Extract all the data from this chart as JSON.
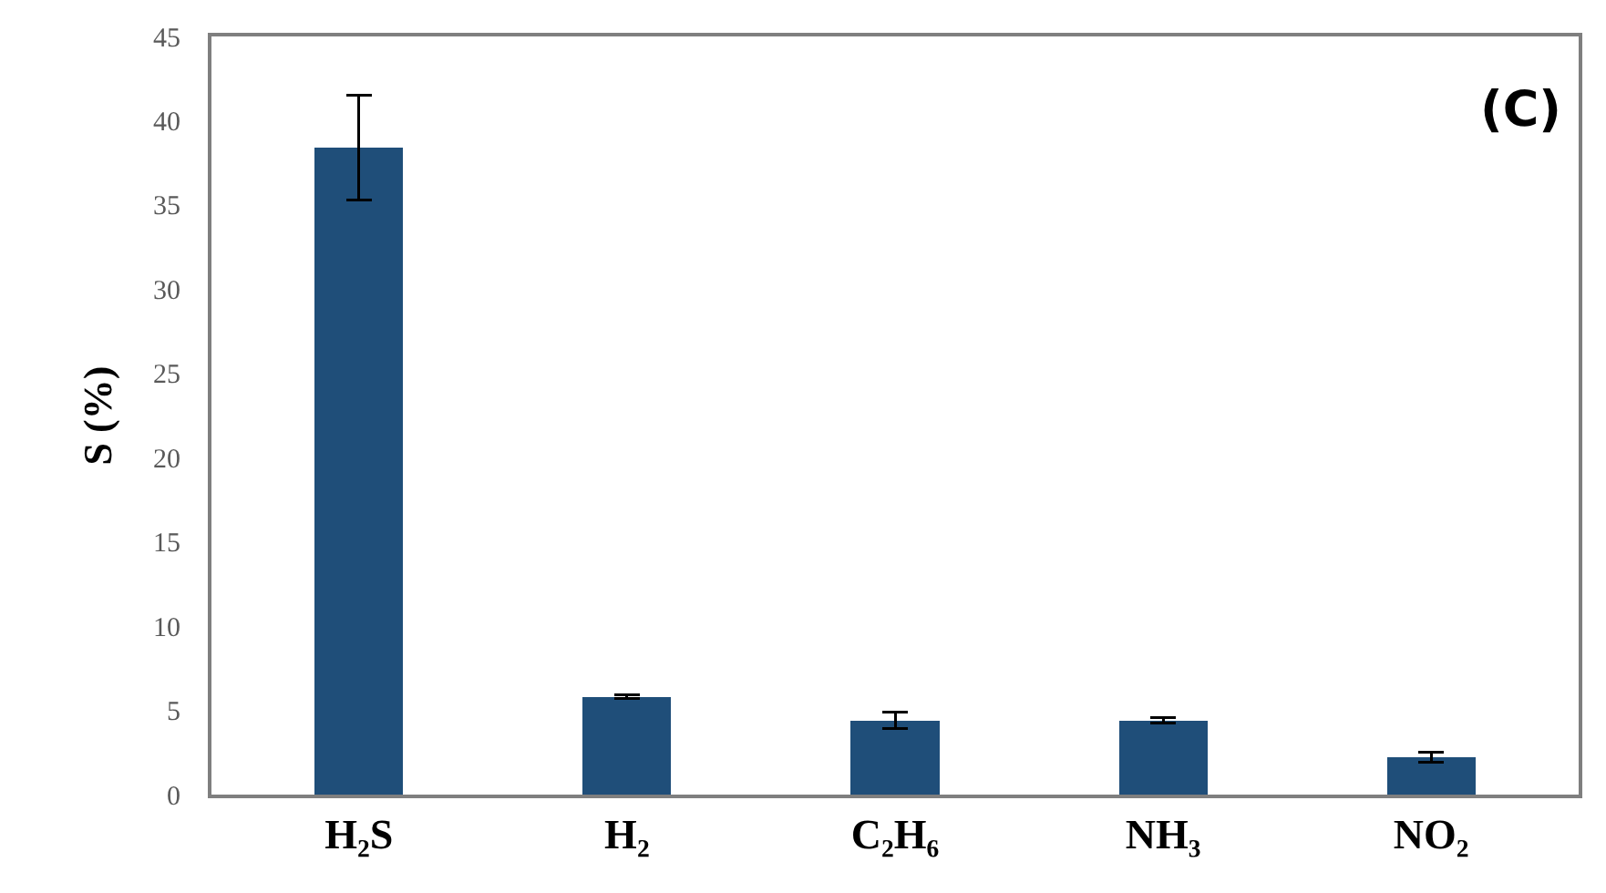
{
  "chart_data": {
    "type": "bar",
    "ylabel": "S (%)",
    "annotations": [
      "(C)"
    ],
    "categories": [
      "H₂S",
      "H₂",
      "C₂H₆",
      "NH₃",
      "NO₂"
    ],
    "values": [
      38.4,
      5.8,
      4.4,
      4.4,
      2.2
    ],
    "errors": [
      3.1,
      0.1,
      0.5,
      0.15,
      0.3
    ],
    "color": "#1f4e79",
    "ylim": [
      0,
      45
    ],
    "yticks": [
      0,
      5,
      10,
      15,
      20,
      25,
      30,
      35,
      40,
      45
    ]
  }
}
